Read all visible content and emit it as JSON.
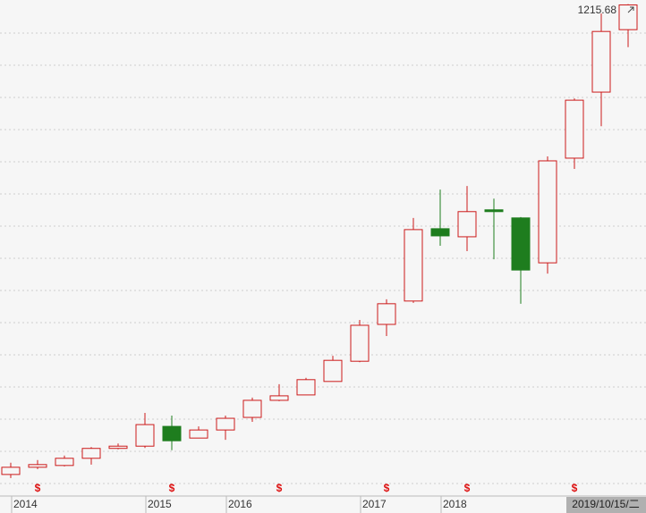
{
  "chart_data": {
    "type": "candlestick",
    "up_color": "#cc1a1a",
    "down_color": "#1e7d1e",
    "ylim": [
      125,
      1225
    ],
    "open": [
      169,
      185,
      189,
      205,
      227,
      232,
      276,
      250,
      268,
      296,
      334,
      346,
      376,
      421,
      503,
      555,
      716,
      698,
      758,
      740,
      640,
      873,
      1020,
      1159
    ],
    "close": [
      185,
      191,
      205,
      227,
      232,
      280,
      244,
      268,
      294,
      334,
      344,
      380,
      423,
      501,
      549,
      714,
      700,
      754,
      754,
      624,
      867,
      1002,
      1155,
      1214
    ],
    "high": [
      195,
      201,
      211,
      230,
      238,
      306,
      300,
      276,
      300,
      340,
      370,
      384,
      433,
      513,
      559,
      740,
      803,
      811,
      783,
      742,
      877,
      1006,
      1195,
      1215.68
    ],
    "low": [
      161,
      181,
      187,
      191,
      225,
      228,
      223,
      250,
      246,
      286,
      332,
      346,
      376,
      419,
      477,
      551,
      678,
      666,
      648,
      549,
      616,
      849,
      944,
      1120
    ],
    "x_labels": [
      "2014",
      "2015",
      "2016",
      "2017",
      "2018"
    ],
    "dividend_markers": [
      "$",
      "$",
      "$",
      "$",
      "$",
      "$"
    ],
    "cursor_date": "2019/10/15/二"
  }
}
